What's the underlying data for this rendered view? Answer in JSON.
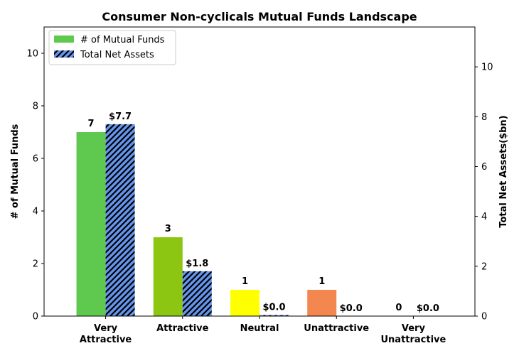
{
  "chart_data": {
    "type": "bar",
    "title": "Consumer Non-cyclicals Mutual Funds Landscape",
    "categories": [
      [
        "Very",
        "Attractive"
      ],
      [
        "Attractive"
      ],
      [
        "Neutral"
      ],
      [
        "Unattractive"
      ],
      [
        "Very",
        "Unattractive"
      ]
    ],
    "series": [
      {
        "name": "# of Mutual Funds",
        "axis": "left",
        "values": [
          7,
          3,
          1,
          1,
          0
        ],
        "labels": [
          "7",
          "3",
          "1",
          "1",
          "0"
        ],
        "colors": [
          "#5fc84e",
          "#8cc613",
          "#ffff00",
          "#f4874f",
          "#e8432c"
        ],
        "pattern": "solid"
      },
      {
        "name": "Total Net Assets",
        "axis": "right",
        "values": [
          7.7,
          1.8,
          0.04,
          0.0,
          0.0
        ],
        "labels": [
          "$7.7",
          "$1.8",
          "$0.0",
          "$0.0",
          "$0.0"
        ],
        "color": "#6495ed",
        "pattern": "hatch"
      }
    ],
    "ylabel_left": "# of Mutual Funds",
    "ylabel_right": "Total Net Assets($bn)",
    "ylim_left": [
      0,
      11
    ],
    "ylim_right": [
      0,
      11.6
    ],
    "yticks_left": [
      0,
      2,
      4,
      6,
      8,
      10
    ],
    "yticks_right": [
      0,
      2,
      4,
      6,
      8,
      10
    ],
    "legend_position": "top-left",
    "grid": false
  }
}
